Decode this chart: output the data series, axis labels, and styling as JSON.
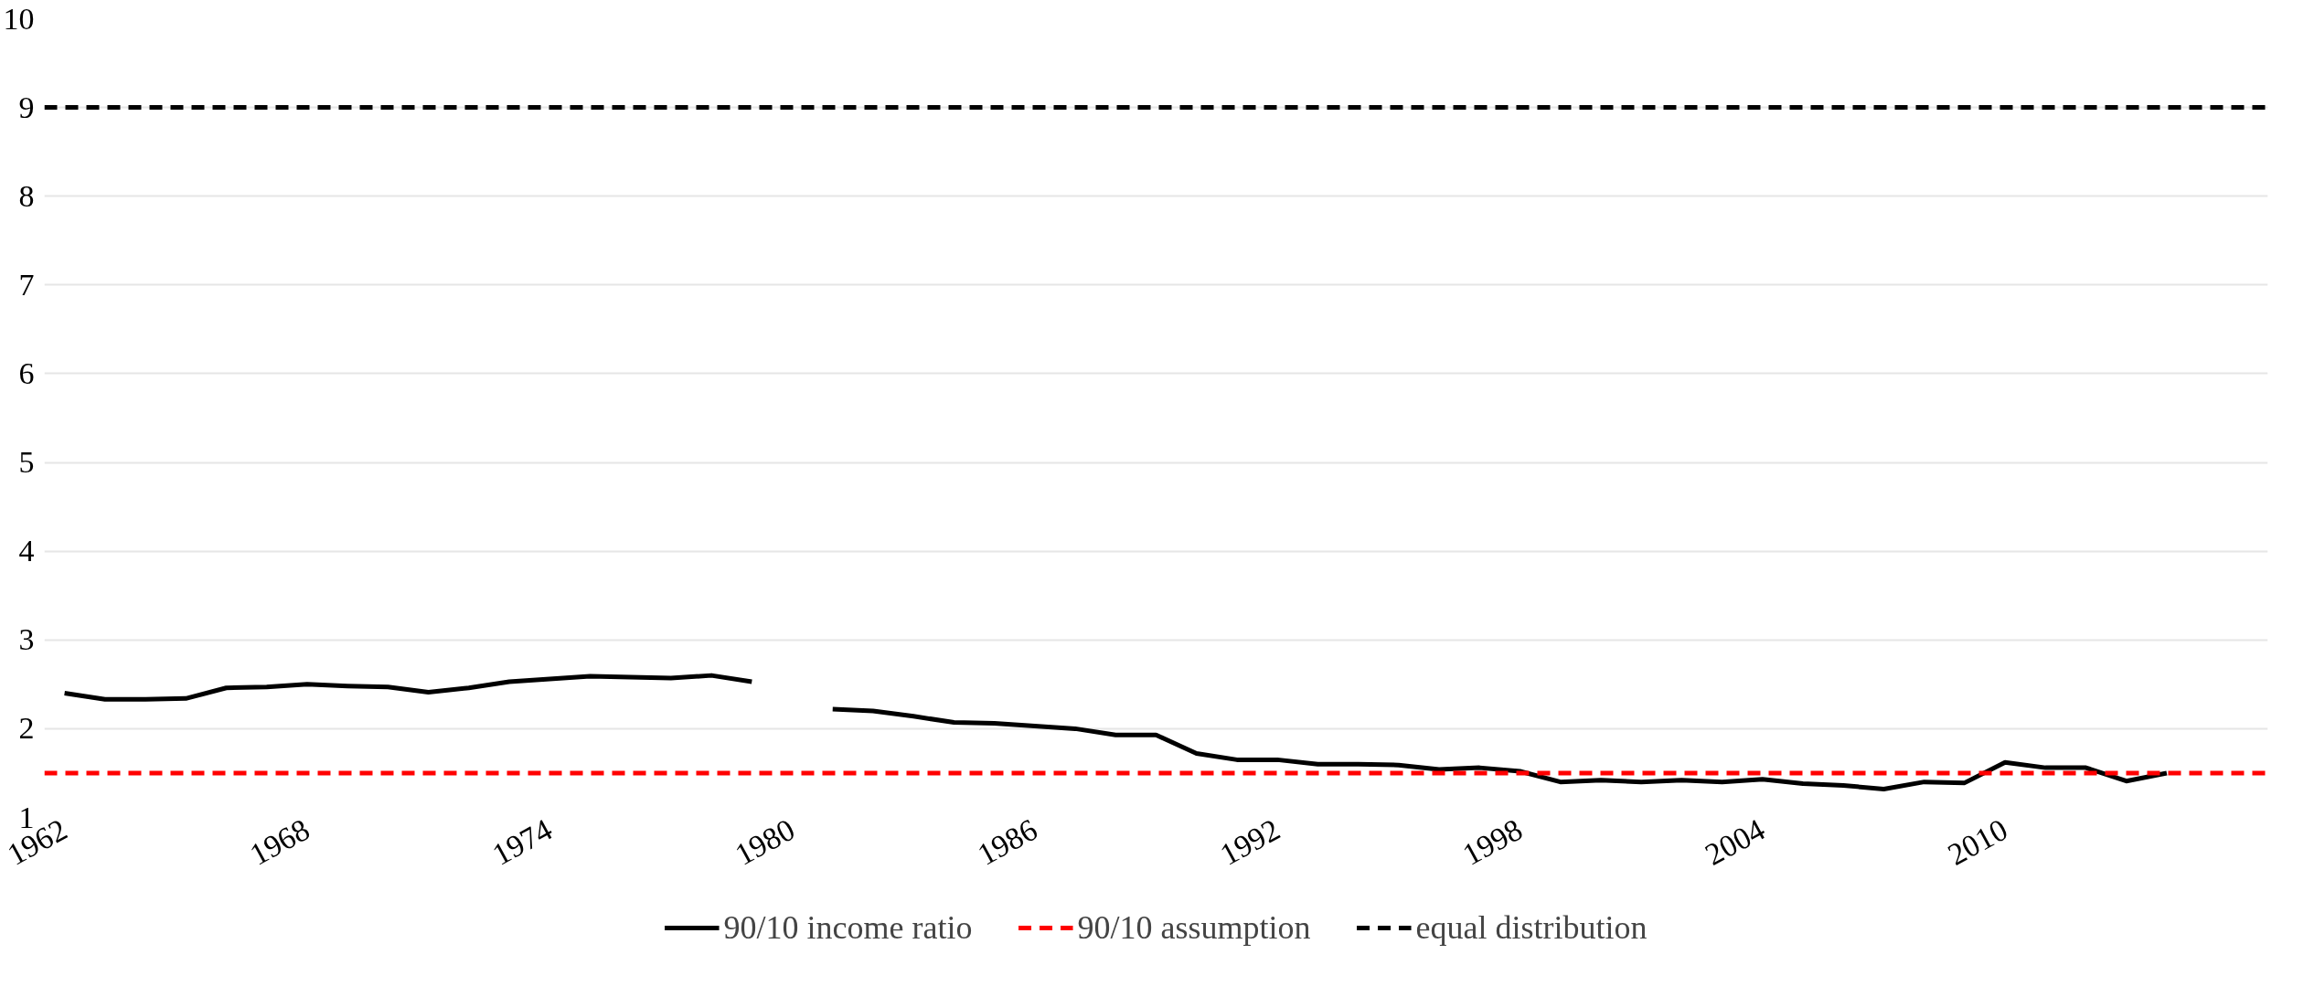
{
  "chart_data": {
    "type": "line",
    "x": [
      1962,
      1963,
      1964,
      1965,
      1966,
      1967,
      1968,
      1969,
      1970,
      1971,
      1972,
      1973,
      1974,
      1975,
      1976,
      1977,
      1978,
      1979,
      1980,
      1981,
      1982,
      1983,
      1984,
      1985,
      1986,
      1987,
      1988,
      1989,
      1990,
      1991,
      1992,
      1993,
      1994,
      1995,
      1996,
      1997,
      1998,
      1999,
      2000,
      2001,
      2002,
      2003,
      2004,
      2005,
      2006,
      2007,
      2008,
      2009,
      2010,
      2011,
      2012,
      2013,
      2014
    ],
    "series": [
      {
        "name": "90/10 income ratio",
        "color": "#000000",
        "values": [
          2.4,
          2.33,
          2.33,
          2.34,
          2.46,
          2.47,
          2.5,
          2.48,
          2.47,
          2.41,
          2.46,
          2.53,
          2.56,
          2.59,
          2.58,
          2.57,
          2.6,
          2.53,
          null,
          2.22,
          2.2,
          2.14,
          2.07,
          2.06,
          2.03,
          2.0,
          1.93,
          1.93,
          1.72,
          1.65,
          1.65,
          1.6,
          1.6,
          1.59,
          1.54,
          1.56,
          1.52,
          1.4,
          1.42,
          1.4,
          1.42,
          1.4,
          1.43,
          1.38,
          1.36,
          1.32,
          1.4,
          1.39,
          1.62,
          1.56,
          1.56,
          1.41,
          1.5
        ]
      }
    ],
    "ref_lines": [
      {
        "axis": "y",
        "value": 1.5,
        "label": "90/10 assumption",
        "color": "#ff0000",
        "line_style": "dashed"
      },
      {
        "axis": "y",
        "value": 9,
        "label": "equal distribution",
        "color": "#000000",
        "line_style": "dashed"
      }
    ],
    "xlim": [
      1961.5,
      2016.5
    ],
    "xticks": [
      1962,
      1968,
      1974,
      1980,
      1986,
      1992,
      1998,
      2004,
      2010
    ],
    "ylim": [
      1,
      10
    ],
    "yticks": [
      1,
      2,
      3,
      4,
      5,
      6,
      7,
      8,
      9,
      10
    ],
    "grid": "y",
    "legend": "bottom",
    "line_style": "solid",
    "marker": "none"
  }
}
